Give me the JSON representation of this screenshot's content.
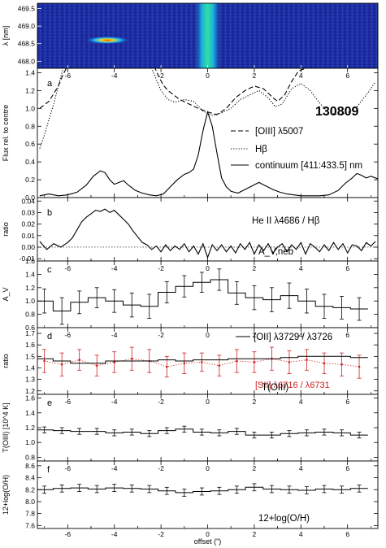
{
  "figure_id": "130809",
  "xlabel": "offset (\")",
  "colors": {
    "data": "#000000",
    "red_series": "#cc2020",
    "spec_bg": "#1a2a9a"
  },
  "chart_data": [
    {
      "panel": "spectrum",
      "type": "heatmap",
      "ylabel": "λ [nm]",
      "xlim": [
        -7.3,
        7.3
      ],
      "ylim": [
        469.65,
        467.8
      ],
      "yticks": [
        "468.0",
        "468.5",
        "469.0",
        "469.5"
      ],
      "features": [
        {
          "name": "continuum",
          "x": 0.0,
          "width": 0.7
        },
        {
          "name": "He II emission",
          "x": -4.3,
          "y": 468.6,
          "width": 2.0
        }
      ]
    },
    {
      "panel": "a",
      "type": "line",
      "ylabel": "Flux rel. to centre",
      "ylim": [
        0,
        1.45
      ],
      "yticks": [
        "0.0",
        "0.2",
        "0.4",
        "0.6",
        "0.8",
        "1.0",
        "1.2",
        "1.4"
      ],
      "xticks": [
        "-6",
        "-4",
        "-2",
        "0",
        "2",
        "4",
        "6"
      ],
      "annotation": "130809",
      "series": [
        {
          "name": "[OIII] λ5007",
          "style": "dashed",
          "x": [
            -7.2,
            -6.8,
            -6.4,
            -6.2,
            -6.0,
            -2.3,
            -2.1,
            -1.9,
            -1.7,
            -1.5,
            -1.2,
            -0.8,
            -0.4,
            0.0,
            0.4,
            0.8,
            1.2,
            1.6,
            2.0,
            2.4,
            2.8,
            3.0,
            3.3,
            3.6,
            3.9,
            4.2,
            4.5
          ],
          "y": [
            1.0,
            1.08,
            1.25,
            1.38,
            1.48,
            1.48,
            1.36,
            1.26,
            1.2,
            1.16,
            1.1,
            1.05,
            1.0,
            0.96,
            0.93,
            1.0,
            1.12,
            1.2,
            1.25,
            1.22,
            1.12,
            1.08,
            1.15,
            1.3,
            1.42,
            1.45,
            1.5
          ]
        },
        {
          "name": "Hβ",
          "style": "dotted",
          "x": [
            -7.2,
            -7.0,
            -6.8,
            -6.6,
            -6.4,
            -6.2,
            -2.4,
            -2.0,
            -1.7,
            -1.4,
            -1.0,
            -0.6,
            -0.2,
            0.2,
            0.6,
            1.0,
            1.4,
            1.8,
            2.2,
            2.6,
            2.9,
            3.2,
            3.6,
            4.0,
            4.4,
            4.8,
            5.2,
            5.6,
            6.0,
            6.4,
            6.8,
            7.2
          ],
          "y": [
            0.55,
            0.7,
            0.88,
            1.05,
            1.25,
            1.45,
            1.45,
            1.2,
            1.1,
            1.07,
            1.1,
            1.08,
            0.97,
            0.92,
            0.95,
            1.0,
            1.1,
            1.15,
            1.2,
            1.12,
            1.02,
            1.05,
            1.22,
            1.28,
            1.2,
            1.06,
            0.95,
            0.93,
            0.95,
            1.02,
            1.15,
            1.3
          ]
        },
        {
          "name": "continuum [411:433.5] nm",
          "style": "solid",
          "x": [
            -7.2,
            -6.8,
            -6.4,
            -6.0,
            -5.6,
            -5.2,
            -4.9,
            -4.6,
            -4.4,
            -4.2,
            -4.0,
            -3.8,
            -3.6,
            -3.4,
            -3.1,
            -2.8,
            -2.5,
            -2.2,
            -1.9,
            -1.6,
            -1.3,
            -1.0,
            -0.8,
            -0.6,
            -0.4,
            -0.2,
            0.0,
            0.2,
            0.4,
            0.6,
            0.8,
            1.0,
            1.3,
            1.6,
            1.9,
            2.2,
            2.5,
            2.8,
            3.1,
            3.4,
            3.7,
            4.0,
            4.4,
            4.8,
            5.2,
            5.6,
            5.9,
            6.2,
            6.4,
            6.6,
            6.8,
            7.0,
            7.3
          ],
          "y": [
            0.02,
            0.04,
            0.02,
            0.03,
            0.06,
            0.14,
            0.24,
            0.3,
            0.28,
            0.2,
            0.15,
            0.17,
            0.19,
            0.14,
            0.08,
            0.05,
            0.03,
            0.02,
            0.04,
            0.12,
            0.2,
            0.26,
            0.28,
            0.32,
            0.48,
            0.75,
            0.96,
            0.8,
            0.5,
            0.22,
            0.12,
            0.07,
            0.05,
            0.09,
            0.13,
            0.17,
            0.13,
            0.09,
            0.06,
            0.04,
            0.03,
            0.02,
            0.02,
            0.02,
            0.03,
            0.08,
            0.16,
            0.22,
            0.27,
            0.25,
            0.22,
            0.24,
            0.21
          ]
        }
      ]
    },
    {
      "panel": "b",
      "type": "line",
      "ylabel": "ratio",
      "ylim": [
        -0.012,
        0.043
      ],
      "yticks": [
        "-0.01",
        "0.00",
        "0.01",
        "0.02",
        "0.03",
        "0.04"
      ],
      "annotation": "He II λ4686 / Hβ",
      "series": [
        {
          "name": "He II λ4686 / Hβ",
          "style": "solid",
          "x": [
            -7.2,
            -6.9,
            -6.6,
            -6.3,
            -6.0,
            -5.8,
            -5.6,
            -5.4,
            -5.2,
            -5.0,
            -4.8,
            -4.6,
            -4.4,
            -4.2,
            -4.0,
            -3.8,
            -3.6,
            -3.4,
            -3.2,
            -3.0,
            -2.8,
            -2.6,
            -2.4,
            -2.2,
            -2.0,
            -1.8,
            -1.6,
            -1.4,
            -1.2,
            -1.0,
            -0.8,
            -0.6,
            -0.4,
            -0.2,
            0.0,
            0.2,
            0.4,
            0.6,
            0.8,
            1.0,
            1.2,
            1.4,
            1.6,
            1.8,
            2.0,
            2.2,
            2.4,
            2.6,
            2.8,
            3.0,
            3.2,
            3.4,
            3.6,
            3.8,
            4.0,
            4.2,
            4.4,
            4.6,
            4.8,
            5.0,
            5.2,
            5.4,
            5.6,
            5.8,
            6.0,
            6.2,
            6.4,
            6.6,
            6.8,
            7.0,
            7.2
          ],
          "y": [
            0.005,
            -0.002,
            0.003,
            0.0,
            0.004,
            0.008,
            0.015,
            0.022,
            0.026,
            0.029,
            0.032,
            0.031,
            0.033,
            0.03,
            0.032,
            0.028,
            0.024,
            0.02,
            0.014,
            0.009,
            0.004,
            0.002,
            -0.002,
            0.001,
            -0.004,
            0.002,
            -0.003,
            0.001,
            -0.002,
            0.003,
            -0.004,
            0.001,
            -0.006,
            0.003,
            -0.009,
            0.002,
            -0.003,
            0.002,
            -0.004,
            0.001,
            -0.005,
            0.003,
            -0.002,
            0.004,
            -0.006,
            0.002,
            -0.003,
            0.003,
            -0.005,
            0.0,
            0.003,
            -0.004,
            0.002,
            -0.002,
            0.004,
            -0.006,
            0.003,
            0.0,
            -0.004,
            0.002,
            -0.003,
            0.004,
            -0.002,
            0.003,
            -0.005,
            0.002,
            0.001,
            -0.003,
            0.004,
            0.001,
            0.005
          ]
        }
      ]
    },
    {
      "panel": "c",
      "type": "line",
      "ylabel": "A_V",
      "ylim": [
        0.6,
        1.6
      ],
      "yticks": [
        "0.6",
        "0.8",
        "1.0",
        "1.2",
        "1.4",
        "1.6"
      ],
      "annotation": "A_V,neb",
      "series": [
        {
          "name": "A_V,neb",
          "style": "step",
          "x": [
            -7.0,
            -6.25,
            -5.5,
            -4.75,
            -4.0,
            -3.25,
            -2.5,
            -1.75,
            -1.0,
            -0.25,
            0.5,
            1.25,
            2.0,
            2.75,
            3.5,
            4.25,
            5.0,
            5.75,
            6.5
          ],
          "y": [
            1.0,
            0.85,
            0.98,
            1.05,
            1.0,
            0.94,
            0.92,
            1.13,
            1.22,
            1.28,
            1.32,
            1.12,
            1.05,
            1.02,
            1.08,
            1.0,
            0.92,
            0.9,
            0.88
          ],
          "err": [
            0.18,
            0.2,
            0.17,
            0.15,
            0.17,
            0.18,
            0.18,
            0.16,
            0.16,
            0.15,
            0.16,
            0.17,
            0.18,
            0.18,
            0.19,
            0.18,
            0.18,
            0.17,
            0.17
          ]
        }
      ]
    },
    {
      "panel": "d",
      "type": "line",
      "ylabel": "ratio",
      "ylim": [
        1.17,
        1.75
      ],
      "yticks": [
        "1.2",
        "1.3",
        "1.4",
        "1.5",
        "1.6",
        "1.7"
      ],
      "series": [
        {
          "name": "[OII] λ3729 / λ3726",
          "style": "step",
          "x": [
            -7.0,
            -6.25,
            -5.5,
            -4.75,
            -4.0,
            -3.25,
            -2.5,
            -1.75,
            -1.0,
            -0.25,
            0.5,
            1.25,
            2.0,
            2.75,
            3.5,
            4.25,
            5.0,
            5.75,
            6.5
          ],
          "y": [
            1.48,
            1.46,
            1.44,
            1.44,
            1.46,
            1.46,
            1.46,
            1.47,
            1.46,
            1.47,
            1.47,
            1.48,
            1.48,
            1.48,
            1.49,
            1.5,
            1.5,
            1.5,
            1.49
          ]
        },
        {
          "name": "[SII] λ6716 / λ6731",
          "style": "dotted-red",
          "x": [
            -7.0,
            -6.25,
            -5.5,
            -4.75,
            -4.0,
            -3.25,
            -2.5,
            -1.75,
            -1.0,
            -0.25,
            0.5,
            1.25,
            2.0,
            2.75,
            3.5,
            4.25,
            5.0,
            5.75,
            6.5
          ],
          "y": [
            1.46,
            1.43,
            1.47,
            1.42,
            1.45,
            1.48,
            1.46,
            1.41,
            1.44,
            1.45,
            1.42,
            1.46,
            1.45,
            1.48,
            1.45,
            1.47,
            1.44,
            1.43,
            1.41
          ],
          "err": [
            0.1,
            0.1,
            0.09,
            0.09,
            0.09,
            0.1,
            0.1,
            0.09,
            0.09,
            0.08,
            0.09,
            0.1,
            0.09,
            0.1,
            0.1,
            0.09,
            0.09,
            0.1,
            0.1
          ]
        }
      ]
    },
    {
      "panel": "e",
      "type": "line",
      "ylabel": "T(OIII) [10^4 K]",
      "ylim": [
        0.75,
        1.65
      ],
      "yticks": [
        "0.8",
        "1.0",
        "1.2",
        "1.4",
        "1.6"
      ],
      "annotation": "T(OIII)",
      "series": [
        {
          "name": "T(OIII)",
          "style": "step",
          "x": [
            -7.0,
            -6.25,
            -5.5,
            -4.75,
            -4.0,
            -3.25,
            -2.5,
            -1.75,
            -1.0,
            -0.25,
            0.5,
            1.25,
            2.0,
            2.75,
            3.5,
            4.25,
            5.0,
            5.75,
            6.5
          ],
          "y": [
            1.17,
            1.16,
            1.15,
            1.15,
            1.13,
            1.14,
            1.12,
            1.16,
            1.18,
            1.14,
            1.13,
            1.15,
            1.1,
            1.1,
            1.12,
            1.13,
            1.14,
            1.13,
            1.1
          ],
          "err": [
            0.04,
            0.04,
            0.04,
            0.04,
            0.04,
            0.04,
            0.04,
            0.04,
            0.04,
            0.04,
            0.04,
            0.04,
            0.04,
            0.04,
            0.04,
            0.04,
            0.04,
            0.04,
            0.04
          ]
        }
      ]
    },
    {
      "panel": "f",
      "type": "line",
      "ylabel": "12+log(O/H)",
      "ylim": [
        7.55,
        8.68
      ],
      "yticks": [
        "7.6",
        "7.8",
        "8.0",
        "8.2",
        "8.4",
        "8.6"
      ],
      "annotation": "12+log(O/H)",
      "series": [
        {
          "name": "12+log(O/H)",
          "style": "step",
          "x": [
            -7.0,
            -6.25,
            -5.5,
            -4.75,
            -4.0,
            -3.25,
            -2.5,
            -1.75,
            -1.0,
            -0.25,
            0.5,
            1.25,
            2.0,
            2.75,
            3.5,
            4.25,
            5.0,
            5.75,
            6.5
          ],
          "y": [
            8.2,
            8.22,
            8.23,
            8.21,
            8.23,
            8.22,
            8.21,
            8.18,
            8.15,
            8.17,
            8.18,
            8.2,
            8.24,
            8.21,
            8.2,
            8.19,
            8.21,
            8.2,
            8.22
          ],
          "err": [
            0.06,
            0.06,
            0.06,
            0.06,
            0.06,
            0.06,
            0.06,
            0.06,
            0.06,
            0.06,
            0.06,
            0.06,
            0.06,
            0.06,
            0.06,
            0.06,
            0.06,
            0.06,
            0.06
          ]
        }
      ]
    }
  ],
  "legend_a": [
    "[OIII] λ5007",
    "Hβ",
    "continuum [411:433.5] nm"
  ],
  "legend_d": [
    "[OII] λ3729 / λ3726",
    "[SII] λ6716 / λ6731"
  ],
  "panel_letters": [
    "a",
    "b",
    "c",
    "d",
    "e",
    "f"
  ]
}
